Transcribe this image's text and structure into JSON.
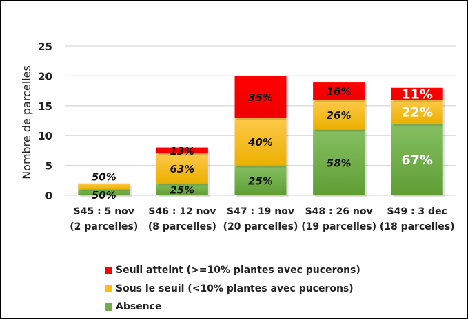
{
  "chart_data": {
    "type": "bar",
    "stacked": true,
    "title": "",
    "xlabel": "",
    "ylabel": "Nombre de parcelles",
    "ylim": [
      0,
      25
    ],
    "yticks": [
      "0",
      "5",
      "10",
      "15",
      "20",
      "25"
    ],
    "grid": true,
    "legend_position": "bottom",
    "categories": [
      [
        "S45 : 5 nov",
        "(2 parcelles)"
      ],
      [
        "S46 : 12 nov",
        "(8 parcelles)"
      ],
      [
        "S47 : 19 nov",
        "(20 parcelles)"
      ],
      [
        "S48 : 26 nov",
        "(19 parcelles)"
      ],
      [
        "S49 : 3 dec",
        "(18 parcelles)"
      ]
    ],
    "series": [
      {
        "name": "Absence",
        "color": "#70AD47",
        "values": [
          1,
          2,
          5,
          11,
          12
        ],
        "labels": [
          "50%",
          "25%",
          "25%",
          "58%",
          "67%"
        ]
      },
      {
        "name": "Sous le seuil (<10% plantes avec pucerons)",
        "color": "#FFC000",
        "values": [
          1,
          5,
          8,
          5,
          4
        ],
        "labels": [
          "50%",
          "63%",
          "40%",
          "26%",
          "22%"
        ]
      },
      {
        "name": "Seuil atteint  (>=10% plantes avec pucerons)",
        "color": "#FF0000",
        "values": [
          0,
          1,
          7,
          3,
          2
        ],
        "labels": [
          "",
          "13%",
          "35%",
          "16%",
          "11%"
        ]
      }
    ],
    "legend_order": [
      2,
      1,
      0
    ]
  }
}
